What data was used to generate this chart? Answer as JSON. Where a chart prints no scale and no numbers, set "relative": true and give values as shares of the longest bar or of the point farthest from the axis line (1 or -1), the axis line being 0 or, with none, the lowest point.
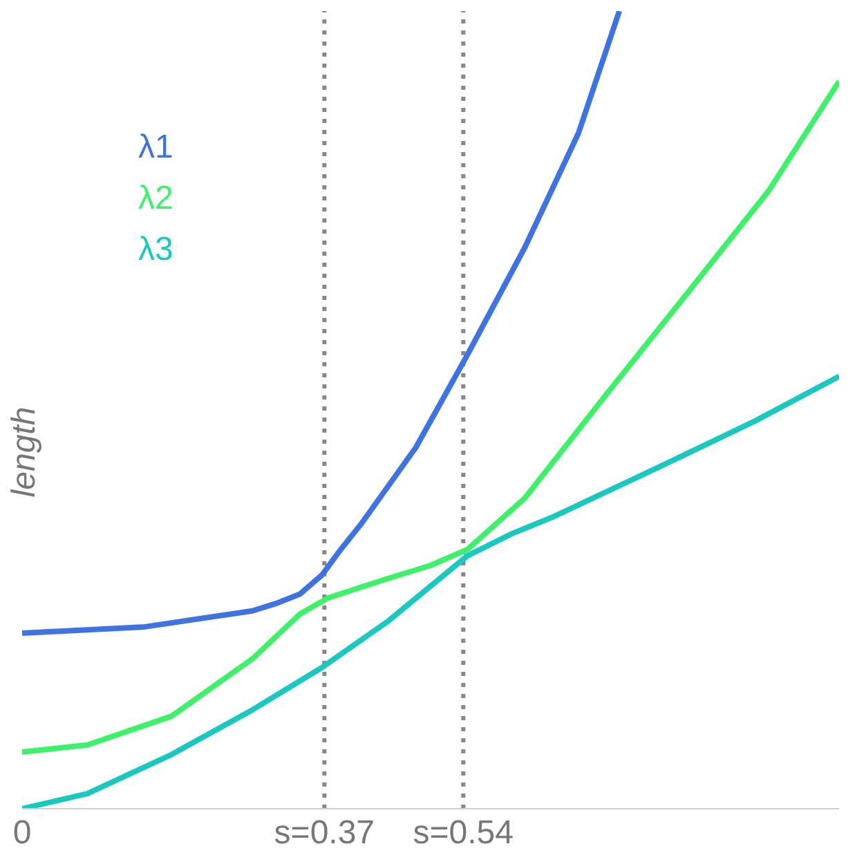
{
  "chart_data": {
    "type": "line",
    "relative": true,
    "ylabel": "length",
    "xlim": [
      0,
      1
    ],
    "xticks": [
      0,
      {
        "value": 0.37,
        "label": "s=0.37"
      },
      {
        "value": 0.54,
        "label": "s=0.54"
      }
    ],
    "grid": false,
    "marker": "none",
    "line_style": "solid",
    "ref_lines": [
      {
        "axis": "x",
        "value": 0.37,
        "color": "#888888",
        "line_style": "dotted"
      },
      {
        "axis": "x",
        "value": 0.54,
        "color": "#888888",
        "line_style": "dotted"
      }
    ],
    "series": [
      {
        "name": "λ1",
        "color": "#3f74e0",
        "x": [
          0,
          0.15,
          0.282,
          0.31,
          0.34,
          0.367,
          0.39,
          0.415,
          0.482,
          0.545,
          0.615,
          0.681,
          0.731
        ],
        "values": [
          0.22,
          0.228,
          0.248,
          0.257,
          0.269,
          0.293,
          0.325,
          0.357,
          0.453,
          0.569,
          0.703,
          0.847,
          1.0
        ]
      },
      {
        "name": "λ2",
        "color": "#3ef06a",
        "x": [
          0,
          0.08,
          0.183,
          0.282,
          0.31,
          0.34,
          0.374,
          0.449,
          0.5,
          0.545,
          0.615,
          0.714,
          0.814,
          0.914,
          1.0
        ],
        "values": [
          0.071,
          0.08,
          0.116,
          0.188,
          0.215,
          0.244,
          0.264,
          0.289,
          0.305,
          0.325,
          0.389,
          0.518,
          0.646,
          0.775,
          0.912
        ]
      },
      {
        "name": "λ3",
        "color": "#1ac8c0",
        "x": [
          0,
          0.08,
          0.183,
          0.282,
          0.367,
          0.449,
          0.545,
          0.6,
          0.648,
          0.781,
          0.897,
          1.0
        ],
        "values": [
          0,
          0.019,
          0.068,
          0.124,
          0.177,
          0.236,
          0.317,
          0.345,
          0.365,
          0.429,
          0.486,
          0.542
        ]
      }
    ]
  }
}
